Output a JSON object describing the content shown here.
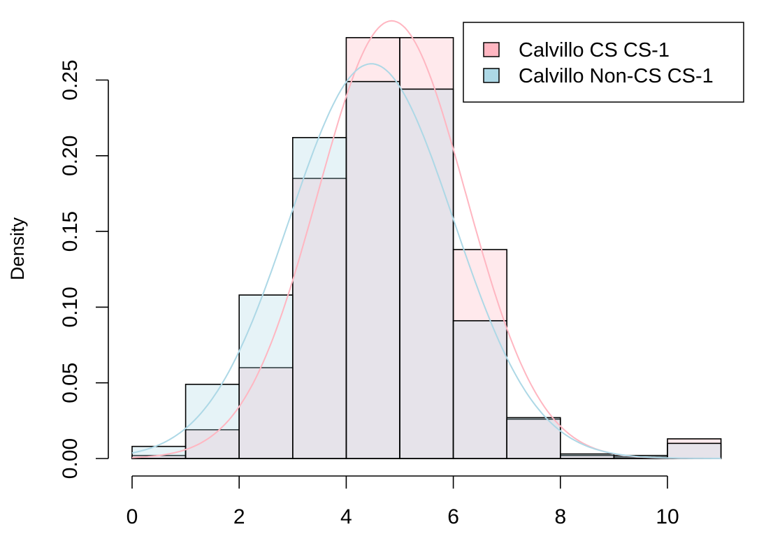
{
  "chart_data": {
    "type": "histogram",
    "title": "",
    "xlabel": "",
    "ylabel": "Density",
    "xlim": [
      0,
      11
    ],
    "ylim": [
      0,
      0.25
    ],
    "x_ticks": [
      0,
      2,
      4,
      6,
      8,
      10
    ],
    "y_ticks": [
      0.0,
      0.05,
      0.1,
      0.15,
      0.2,
      0.25
    ],
    "y_tick_labels": [
      "0.00",
      "0.05",
      "0.10",
      "0.15",
      "0.20",
      "0.25"
    ],
    "bins": [
      [
        0,
        1
      ],
      [
        1,
        2
      ],
      [
        2,
        3
      ],
      [
        3,
        4
      ],
      [
        4,
        5
      ],
      [
        5,
        6
      ],
      [
        6,
        7
      ],
      [
        7,
        8
      ],
      [
        8,
        9
      ],
      [
        9,
        10
      ],
      [
        10,
        11
      ]
    ],
    "series": [
      {
        "name": "Calvillo CS CS-1",
        "color": "#ffb6c1",
        "density": [
          0.002,
          0.019,
          0.06,
          0.185,
          0.278,
          0.278,
          0.138,
          0.026,
          0.002,
          0.001,
          0.013
        ],
        "fit_curve": {
          "type": "normal",
          "mean": 4.85,
          "sd": 1.38
        }
      },
      {
        "name": "Calvillo Non-CS CS-1",
        "color": "#add8e6",
        "density": [
          0.008,
          0.049,
          0.108,
          0.212,
          0.249,
          0.244,
          0.091,
          0.027,
          0.003,
          0.002,
          0.01
        ],
        "fit_curve": {
          "type": "normal",
          "mean": 4.47,
          "sd": 1.53
        }
      }
    ],
    "legend_position": "top-right",
    "grid": false
  }
}
